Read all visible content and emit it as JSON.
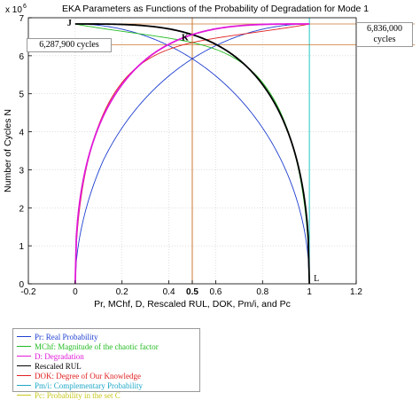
{
  "chart_data": {
    "type": "line",
    "title": "EKA Parameters as Functions of the Probability of Degradation for Mode 1",
    "xlabel": "Pr, MChf, D, Rescaled RUL, DOK, Pm/i, and Pc",
    "ylabel": "Number of Cycles N",
    "y_exponent_label": "x 10",
    "y_exponent_power": "6",
    "xlim": [
      -0.2,
      1.2
    ],
    "ylim": [
      0,
      7
    ],
    "x_ticks": [
      "-0.2",
      "0",
      "0.2",
      "0.4",
      "0.5",
      "0.6",
      "0.8",
      "1",
      "1.2"
    ],
    "x_tick_values": [
      -0.2,
      0,
      0.2,
      0.4,
      0.5,
      0.6,
      0.8,
      1,
      1.2
    ],
    "y_ticks": [
      "0",
      "1",
      "2",
      "3",
      "4",
      "5",
      "6",
      "7"
    ],
    "y_tick_values": [
      0,
      1,
      2,
      3,
      4,
      5,
      6,
      7
    ],
    "grid": true,
    "point_labels": [
      {
        "text": "J",
        "x": 0,
        "y": 6.836
      },
      {
        "text": "K",
        "x": 0.5,
        "y": 6.5
      },
      {
        "text": "L",
        "x": 1,
        "y": 0
      }
    ],
    "reference_lines": {
      "vertical_x": 0.5,
      "vertical_x2": 1,
      "horizontal_y": [
        6.836,
        6.2879
      ]
    },
    "annotations": [
      {
        "text": "6,287,900 cycles",
        "y": 6.2879
      },
      {
        "text": "6,836,000 cycles",
        "y": 6.836
      }
    ],
    "series": [
      {
        "name": "Pr: Real Probability",
        "color": "#1f3fd0"
      },
      {
        "name": "MChf: Magnitude of the chaotic factor",
        "color": "#22bb22"
      },
      {
        "name": "D: Degradation",
        "color": "#e01ad8"
      },
      {
        "name": "Rescaled RUL",
        "color": "#000000"
      },
      {
        "name": "DOK: Degree of Our Knowledge",
        "color": "#e02020"
      },
      {
        "name": "Pm/i: Complementary Probability",
        "color": "#20a8c8"
      },
      {
        "name": "Pc: Probability in the set C",
        "color": "#c8c820"
      }
    ]
  }
}
